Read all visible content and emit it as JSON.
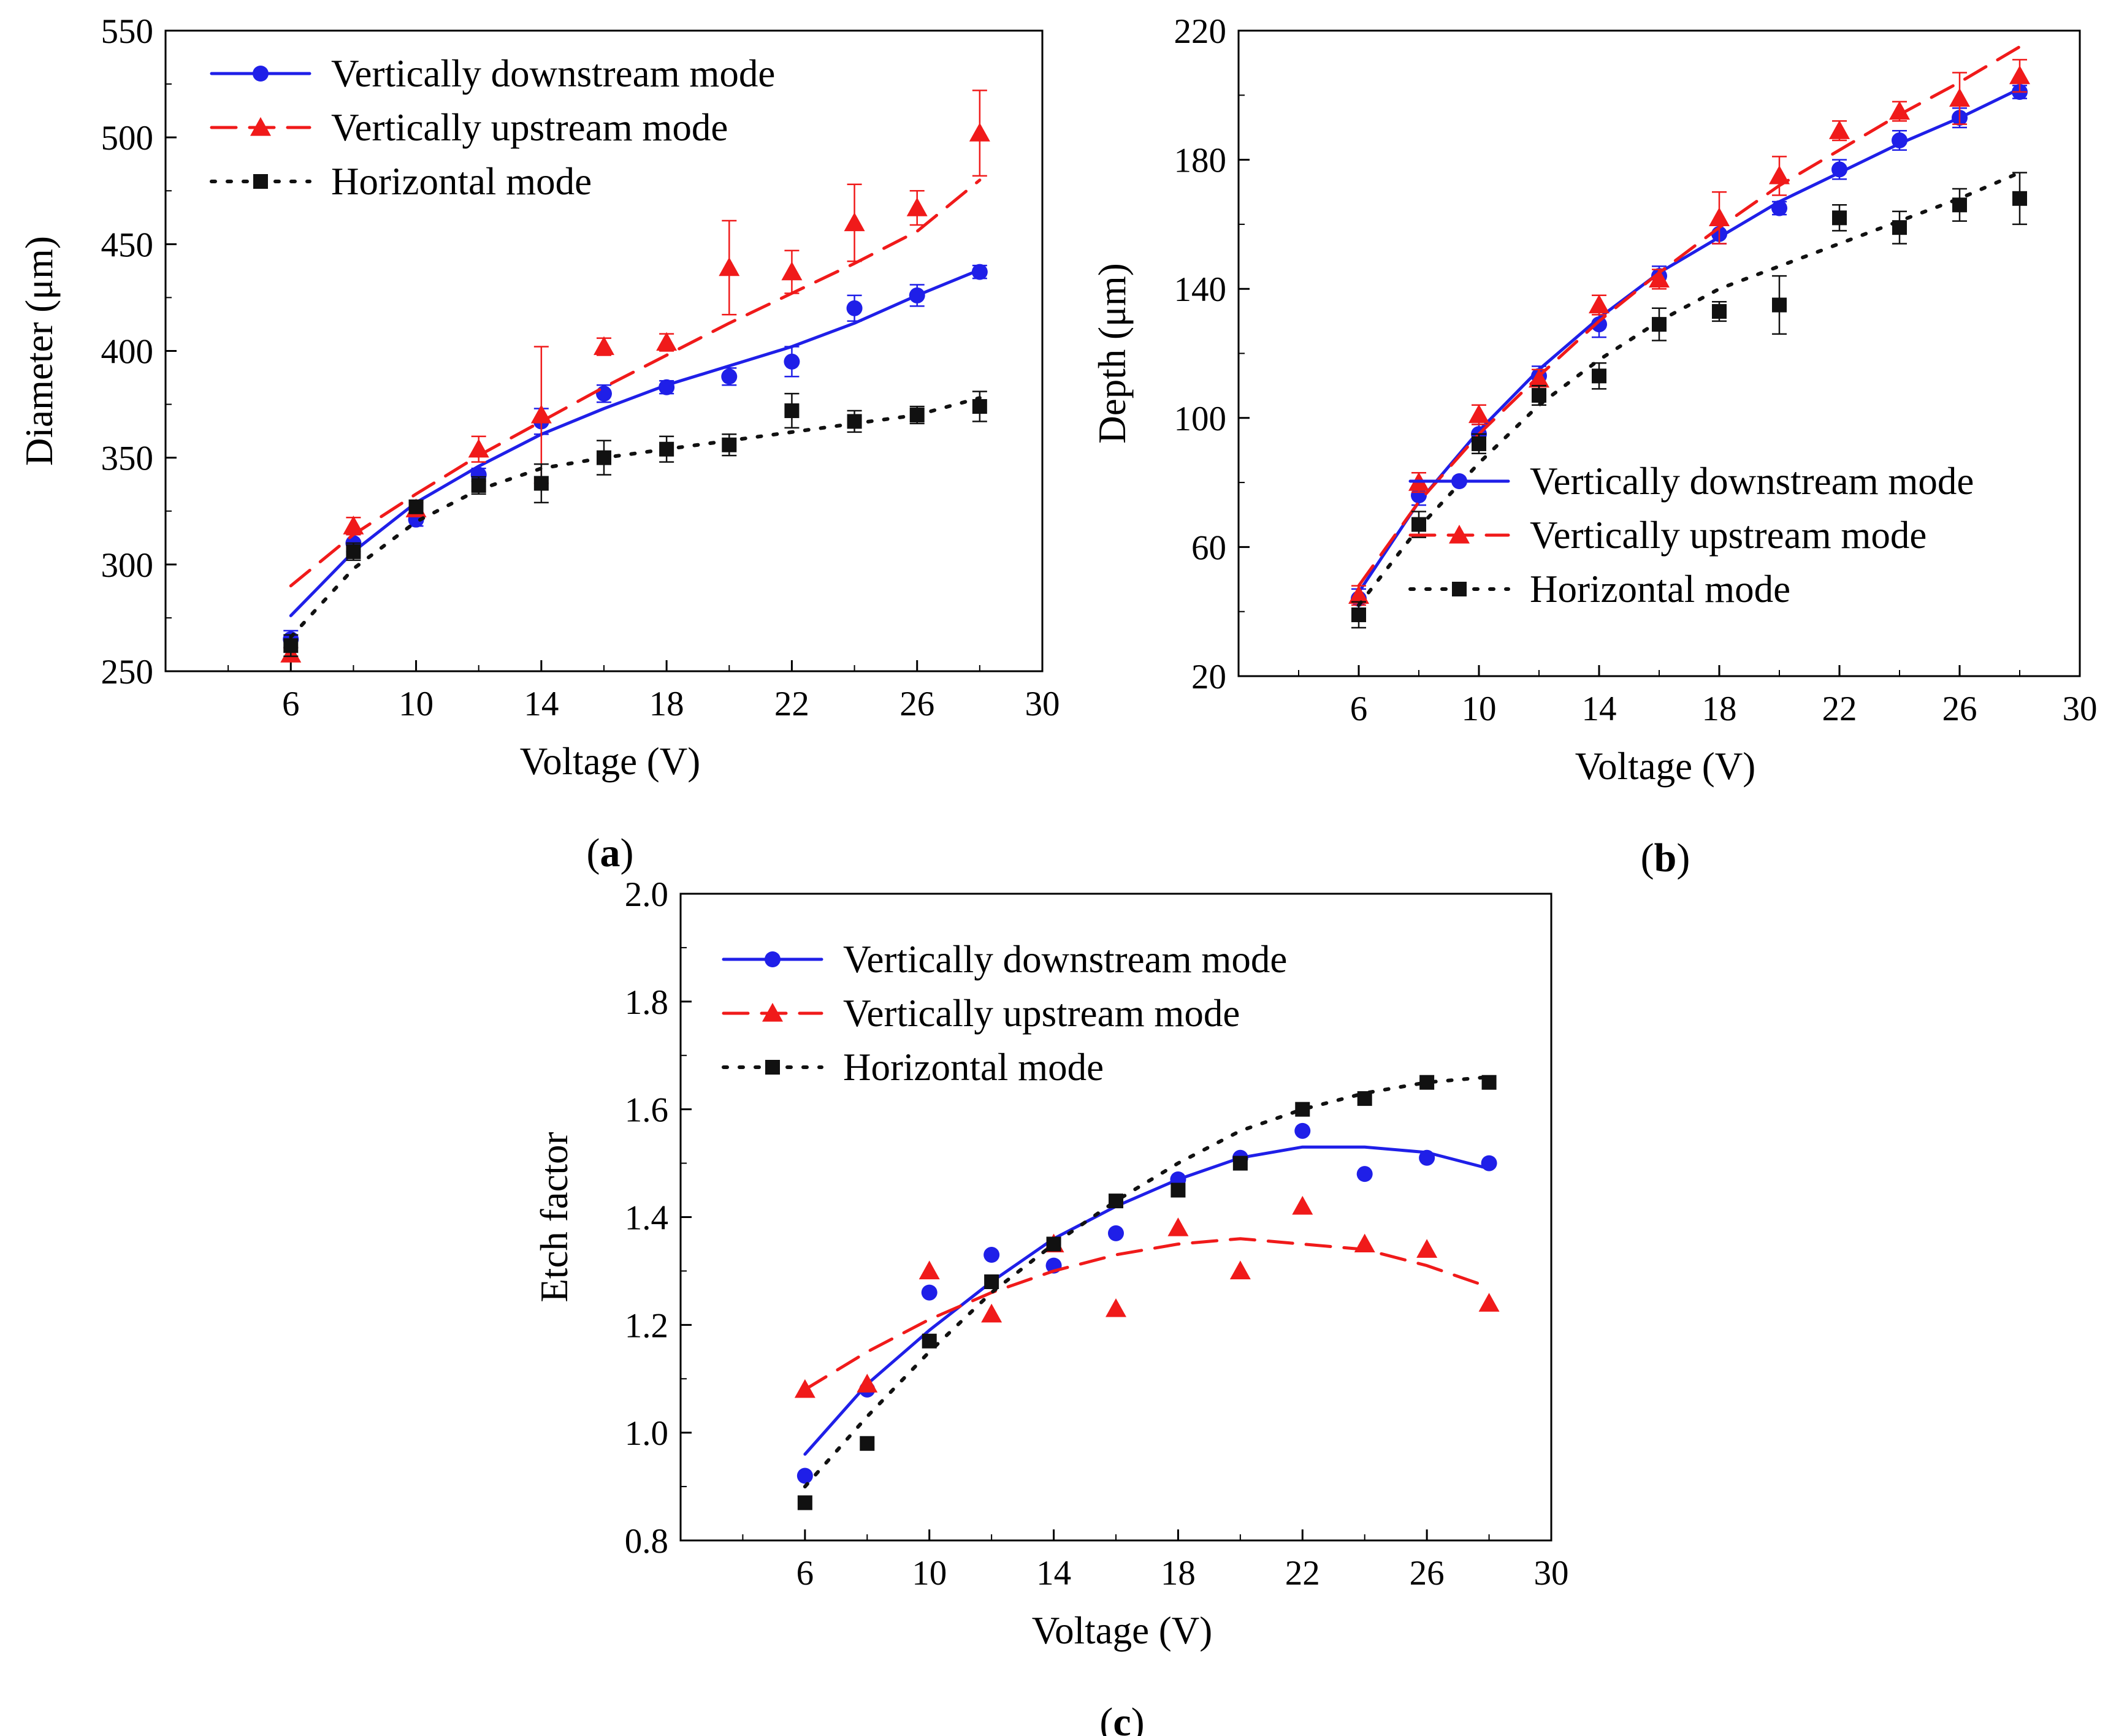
{
  "chart_data": [
    {
      "id": "a",
      "type": "scatter",
      "caption_letter": "a",
      "xlabel": "Voltage (V)",
      "ylabel": "Diameter (μm)",
      "xlim": [
        2,
        30
      ],
      "ylim": [
        250,
        550
      ],
      "x_ticks": [
        6,
        10,
        14,
        18,
        22,
        26,
        30
      ],
      "y_ticks": [
        250,
        300,
        350,
        400,
        450,
        500,
        550
      ],
      "legend_position": "top-left",
      "series": [
        {
          "name": "Vertically downstream mode",
          "color": "#1f1fe8",
          "marker": "circle",
          "line": "solid",
          "x": [
            6,
            8,
            10,
            12,
            14,
            16,
            18,
            20,
            22,
            24,
            26,
            28
          ],
          "values": [
            265,
            310,
            321,
            342,
            367,
            380,
            383,
            388,
            395,
            420,
            426,
            437
          ],
          "errors": [
            4,
            4,
            3,
            3,
            6,
            4,
            3,
            4,
            7,
            6,
            5,
            3
          ],
          "fit": [
            276,
            306,
            329,
            346,
            361,
            373,
            384,
            393,
            402,
            413,
            426,
            438
          ]
        },
        {
          "name": "Vertically upstream mode",
          "color": "#f01a1a",
          "marker": "triangle",
          "line": "dashed",
          "x": [
            6,
            8,
            10,
            12,
            14,
            16,
            18,
            20,
            22,
            24,
            26,
            28
          ],
          "values": [
            258,
            318,
            326,
            354,
            370,
            402,
            404,
            439,
            437,
            460,
            467,
            502
          ],
          "errors": [
            3,
            4,
            3,
            6,
            32,
            4,
            4,
            22,
            10,
            18,
            8,
            20
          ],
          "fit": [
            290,
            314,
            333,
            351,
            367,
            383,
            398,
            413,
            427,
            441,
            456,
            480
          ]
        },
        {
          "name": "Horizontal mode",
          "color": "#111111",
          "marker": "square",
          "line": "dotted",
          "x": [
            6,
            8,
            10,
            12,
            14,
            16,
            18,
            20,
            22,
            24,
            26,
            28
          ],
          "values": [
            262,
            306,
            327,
            337,
            338,
            350,
            354,
            356,
            372,
            367,
            370,
            374
          ],
          "errors": [
            5,
            4,
            3,
            4,
            9,
            8,
            6,
            5,
            8,
            5,
            4,
            7
          ],
          "fit": [
            266,
            298,
            320,
            335,
            345,
            350,
            354,
            358,
            362,
            366,
            370,
            378
          ]
        }
      ]
    },
    {
      "id": "b",
      "type": "scatter",
      "caption_letter": "b",
      "xlabel": "Voltage (V)",
      "ylabel": "Depth (μm)",
      "xlim": [
        2,
        30
      ],
      "ylim": [
        20,
        220
      ],
      "x_ticks": [
        6,
        10,
        14,
        18,
        22,
        26,
        30
      ],
      "y_ticks": [
        20,
        60,
        100,
        140,
        180,
        220
      ],
      "legend_position": "center-right",
      "series": [
        {
          "name": "Vertically downstream mode",
          "color": "#1f1fe8",
          "marker": "circle",
          "line": "solid",
          "x": [
            6,
            8,
            10,
            12,
            14,
            16,
            18,
            20,
            22,
            24,
            26,
            28
          ],
          "values": [
            44,
            76,
            95,
            113,
            129,
            144,
            157,
            165,
            177,
            186,
            193,
            201
          ],
          "errors": [
            3,
            3,
            3,
            3,
            4,
            3,
            3,
            2,
            3,
            3,
            3,
            2
          ],
          "fit": [
            46,
            74,
            96,
            115,
            131,
            145,
            156,
            167,
            176,
            185,
            193,
            202
          ]
        },
        {
          "name": "Vertically upstream mode",
          "color": "#f01a1a",
          "marker": "triangle",
          "line": "dashed",
          "x": [
            6,
            8,
            10,
            12,
            14,
            16,
            18,
            20,
            22,
            24,
            26,
            28
          ],
          "values": [
            45,
            80,
            101,
            112,
            135,
            143,
            162,
            175,
            189,
            195,
            199,
            206
          ],
          "errors": [
            3,
            3,
            3,
            3,
            3,
            3,
            8,
            6,
            3,
            3,
            8,
            5
          ],
          "fit": [
            48,
            74,
            95,
            113,
            130,
            145,
            159,
            172,
            183,
            194,
            204,
            215
          ]
        },
        {
          "name": "Horizontal mode",
          "color": "#111111",
          "marker": "square",
          "line": "dotted",
          "x": [
            6,
            8,
            10,
            12,
            14,
            16,
            18,
            20,
            22,
            24,
            26,
            28
          ],
          "values": [
            39,
            67,
            92,
            107,
            113,
            129,
            133,
            135,
            162,
            159,
            166,
            168
          ],
          "errors": [
            4,
            4,
            3,
            3,
            4,
            5,
            3,
            9,
            4,
            5,
            5,
            8
          ],
          "fit": [
            42,
            66,
            86,
            104,
            118,
            130,
            140,
            147,
            154,
            161,
            168,
            176
          ]
        }
      ]
    },
    {
      "id": "c",
      "type": "scatter",
      "caption_letter": "c",
      "xlabel": "Voltage (V)",
      "ylabel": "Etch factor",
      "xlim": [
        2,
        30
      ],
      "ylim": [
        0.8,
        2.0
      ],
      "x_ticks": [
        6,
        10,
        14,
        18,
        22,
        26,
        30
      ],
      "y_ticks": [
        0.8,
        1.0,
        1.2,
        1.4,
        1.6,
        1.8,
        2.0
      ],
      "legend_position": "top-left",
      "series": [
        {
          "name": "Vertically downstream mode",
          "color": "#1f1fe8",
          "marker": "circle",
          "line": "solid",
          "x": [
            6,
            8,
            10,
            12,
            14,
            16,
            18,
            20,
            22,
            24,
            26,
            28
          ],
          "values": [
            0.92,
            1.08,
            1.26,
            1.33,
            1.31,
            1.37,
            1.47,
            1.51,
            1.56,
            1.48,
            1.51,
            1.5
          ],
          "fit": [
            0.96,
            1.09,
            1.19,
            1.28,
            1.36,
            1.42,
            1.47,
            1.51,
            1.53,
            1.53,
            1.52,
            1.49
          ]
        },
        {
          "name": "Vertically upstream mode",
          "color": "#f01a1a",
          "marker": "triangle",
          "line": "dashed",
          "x": [
            6,
            8,
            10,
            12,
            14,
            16,
            18,
            20,
            22,
            24,
            26,
            28
          ],
          "values": [
            1.08,
            1.09,
            1.3,
            1.22,
            1.35,
            1.23,
            1.38,
            1.3,
            1.42,
            1.35,
            1.34,
            1.24
          ],
          "fit": [
            1.08,
            1.15,
            1.21,
            1.26,
            1.3,
            1.33,
            1.35,
            1.36,
            1.35,
            1.34,
            1.31,
            1.27
          ]
        },
        {
          "name": "Horizontal mode",
          "color": "#111111",
          "marker": "square",
          "line": "dotted",
          "x": [
            6,
            8,
            10,
            12,
            14,
            16,
            18,
            20,
            22,
            24,
            26,
            28
          ],
          "values": [
            0.87,
            0.98,
            1.17,
            1.28,
            1.35,
            1.43,
            1.45,
            1.5,
            1.6,
            1.62,
            1.65,
            1.65
          ],
          "fit": [
            0.9,
            1.03,
            1.15,
            1.26,
            1.35,
            1.43,
            1.5,
            1.56,
            1.6,
            1.63,
            1.65,
            1.66
          ]
        }
      ]
    }
  ]
}
